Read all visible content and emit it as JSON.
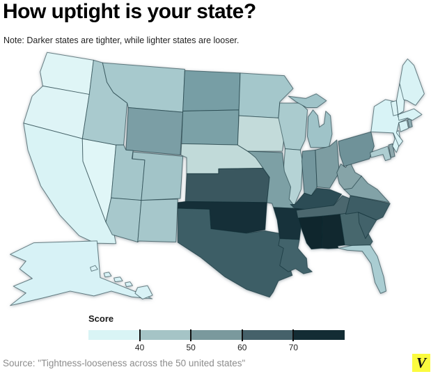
{
  "title": "How uptight is your state?",
  "note": "Note: Darker states are tighter, while lighter states are looser.",
  "source": "Source: \"Tightness-looseness across the 50 united states\"",
  "logo": {
    "letter": "V",
    "bg_color": "#fbfb3e"
  },
  "legend": {
    "label": "Score",
    "ticks": [
      "40",
      "50",
      "60",
      "70"
    ],
    "segments": [
      "#d9f4f5",
      "#a5c4c6",
      "#7a999d",
      "#45616a",
      "#132c34"
    ]
  },
  "colors": {
    "background": "#ffffff",
    "state_border": "rgba(10,40,48,0.55)",
    "title": "#000000",
    "note": "#1f1f1f",
    "source_text": "#8c8c8c"
  },
  "chart_data": {
    "type": "heatmap",
    "title": "How uptight is your state?",
    "subtitle": "Note: Darker states are tighter, while lighter states are looser.",
    "legend_title": "Score",
    "legend_ticks": [
      40,
      50,
      60,
      70
    ],
    "bands": [
      "under 40",
      "40-50",
      "50-60",
      "60-70",
      "over 70"
    ],
    "source": "Source: \"Tightness-looseness across the 50 united states\"",
    "states": [
      {
        "code": "WA",
        "name": "Washington",
        "band": "under 40",
        "color": "#dff5f6"
      },
      {
        "code": "OR",
        "name": "Oregon",
        "band": "under 40",
        "color": "#def4f6"
      },
      {
        "code": "CA",
        "name": "California",
        "band": "under 40",
        "color": "#d9f3f5"
      },
      {
        "code": "NV",
        "name": "Nevada",
        "band": "under 40",
        "color": "#e0f6f7"
      },
      {
        "code": "AK",
        "name": "Alaska",
        "band": "under 40",
        "color": "#d7f2f6"
      },
      {
        "code": "HI",
        "name": "Hawaii",
        "band": "under 40",
        "color": "#d8f2f6"
      },
      {
        "code": "NY",
        "name": "New York",
        "band": "under 40",
        "color": "#d8f3f6"
      },
      {
        "code": "NJ",
        "name": "New Jersey",
        "band": "under 40",
        "color": "#daf4f6"
      },
      {
        "code": "CT",
        "name": "Connecticut",
        "band": "under 40",
        "color": "#d5f1f4"
      },
      {
        "code": "MA",
        "name": "Massachusetts",
        "band": "under 40",
        "color": "#d8f3f5"
      },
      {
        "code": "VT",
        "name": "Vermont",
        "band": "under 40",
        "color": "#dbf4f6"
      },
      {
        "code": "NH",
        "name": "New Hampshire",
        "band": "under 40",
        "color": "#ddf5f7"
      },
      {
        "code": "ME",
        "name": "Maine",
        "band": "under 40",
        "color": "#d9f3f5"
      },
      {
        "code": "ID",
        "name": "Idaho",
        "band": "40-50",
        "color": "#a9cace"
      },
      {
        "code": "MT",
        "name": "Montana",
        "band": "40-50",
        "color": "#a7c9cd"
      },
      {
        "code": "UT",
        "name": "Utah",
        "band": "40-50",
        "color": "#a4c6ca"
      },
      {
        "code": "AZ",
        "name": "Arizona",
        "band": "40-50",
        "color": "#a7c8cc"
      },
      {
        "code": "NM",
        "name": "New Mexico",
        "band": "40-50",
        "color": "#a6c7cb"
      },
      {
        "code": "CO",
        "name": "Colorado",
        "band": "40-50",
        "color": "#a2c4c8"
      },
      {
        "code": "MN",
        "name": "Minnesota",
        "band": "40-50",
        "color": "#a4c7cb"
      },
      {
        "code": "WI",
        "name": "Wisconsin",
        "band": "40-50",
        "color": "#aacbce"
      },
      {
        "code": "MI",
        "name": "Michigan",
        "band": "40-50",
        "color": "#9fc3c8"
      },
      {
        "code": "IA",
        "name": "Iowa",
        "band": "40-50",
        "color": "#c3dbda"
      },
      {
        "code": "NE",
        "name": "Nebraska",
        "band": "40-50",
        "color": "#c1dad9"
      },
      {
        "code": "IL",
        "name": "Illinois",
        "band": "40-50",
        "color": "#b5d3d5"
      },
      {
        "code": "FL",
        "name": "Florida",
        "band": "40-50",
        "color": "#aacdd2"
      },
      {
        "code": "MD",
        "name": "Maryland",
        "band": "40-50",
        "color": "#aecdd1"
      },
      {
        "code": "ND",
        "name": "North Dakota",
        "band": "50-60",
        "color": "#779ea5"
      },
      {
        "code": "SD",
        "name": "South Dakota",
        "band": "50-60",
        "color": "#7ba1a7"
      },
      {
        "code": "WY",
        "name": "Wyoming",
        "band": "50-60",
        "color": "#7b9ea5"
      },
      {
        "code": "MO",
        "name": "Missouri",
        "band": "50-60",
        "color": "#7da0a5"
      },
      {
        "code": "OH",
        "name": "Ohio",
        "band": "50-60",
        "color": "#7d9da2"
      },
      {
        "code": "IN",
        "name": "Indiana",
        "band": "50-60",
        "color": "#73969d"
      },
      {
        "code": "PA",
        "name": "Pennsylvania",
        "band": "50-60",
        "color": "#6f9299"
      },
      {
        "code": "VA",
        "name": "Virginia",
        "band": "50-60",
        "color": "#82a2a7"
      },
      {
        "code": "WV",
        "name": "West Virginia",
        "band": "50-60",
        "color": "#86a4a8"
      },
      {
        "code": "DE",
        "name": "Delaware",
        "band": "50-60",
        "color": "#8fa9ae"
      },
      {
        "code": "RI",
        "name": "Rhode Island",
        "band": "50-60",
        "color": "#8caab0"
      },
      {
        "code": "KS",
        "name": "Kansas",
        "band": "60-70",
        "color": "#3a575f"
      },
      {
        "code": "TX",
        "name": "Texas",
        "band": "60-70",
        "color": "#3d5e66"
      },
      {
        "code": "LA",
        "name": "Louisiana",
        "band": "60-70",
        "color": "#42636b"
      },
      {
        "code": "TN",
        "name": "Tennessee",
        "band": "60-70",
        "color": "#4b676e"
      },
      {
        "code": "GA",
        "name": "Georgia",
        "band": "60-70",
        "color": "#47676d"
      },
      {
        "code": "SC",
        "name": "South Carolina",
        "band": "60-70",
        "color": "#42626a"
      },
      {
        "code": "NC",
        "name": "North Carolina",
        "band": "60-70",
        "color": "#3d5d65"
      },
      {
        "code": "KY",
        "name": "Kentucky",
        "band": "60-70",
        "color": "#2c4c55"
      },
      {
        "code": "OK",
        "name": "Oklahoma",
        "band": "over 70",
        "color": "#152f38"
      },
      {
        "code": "AR",
        "name": "Arkansas",
        "band": "over 70",
        "color": "#17323b"
      },
      {
        "code": "MS",
        "name": "Mississippi",
        "band": "over 70",
        "color": "#0f262d"
      },
      {
        "code": "AL",
        "name": "Alabama",
        "band": "over 70",
        "color": "#11282f"
      }
    ]
  }
}
